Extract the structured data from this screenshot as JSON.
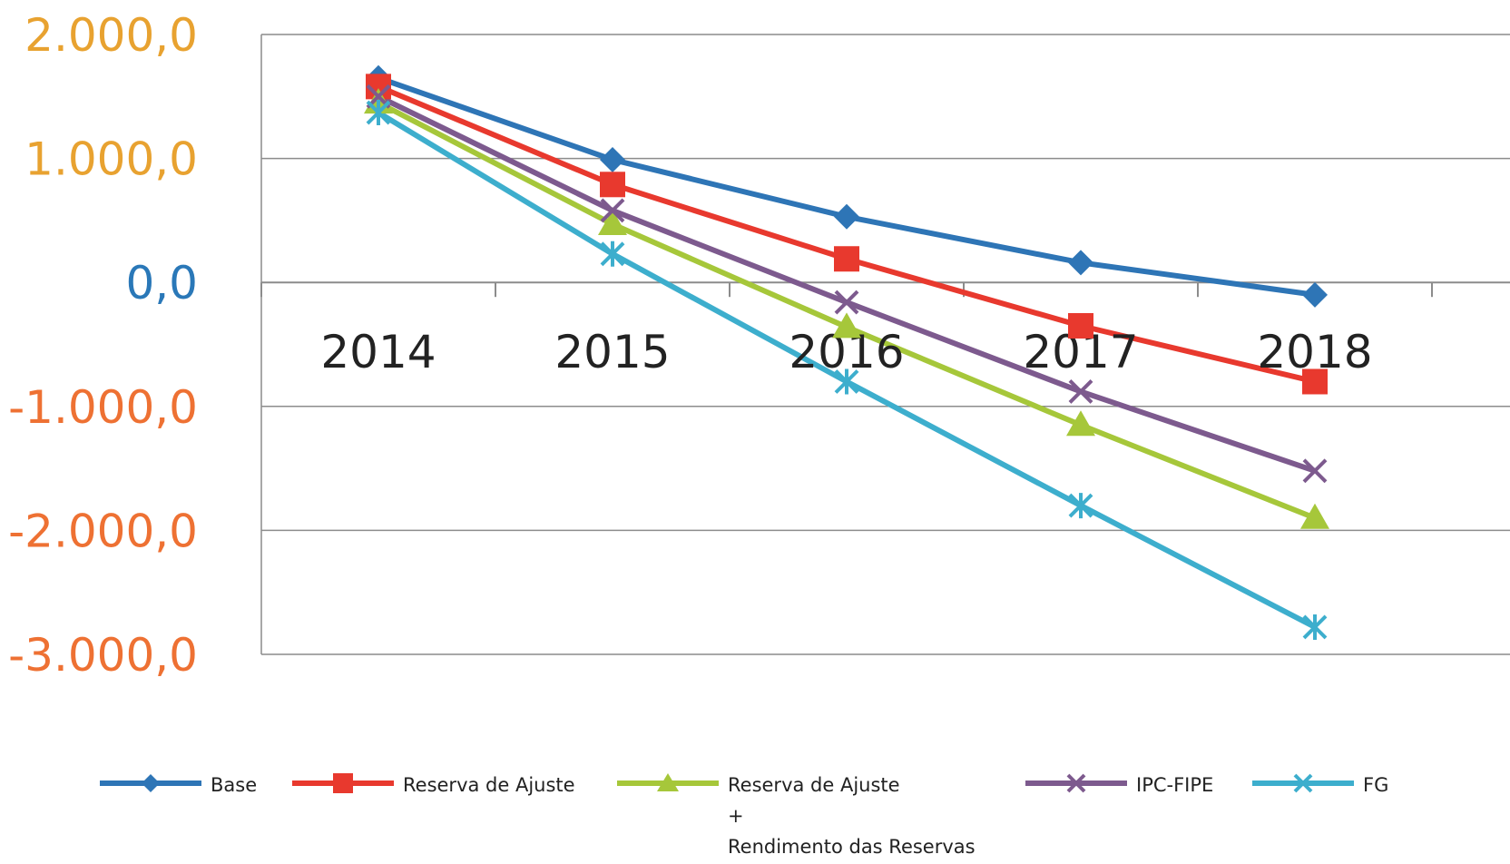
{
  "chart_data": {
    "type": "line",
    "title": "",
    "xlabel": "",
    "ylabel": "",
    "categories": [
      "2014",
      "2015",
      "2016",
      "2017",
      "2018"
    ],
    "ylim": [
      -3000,
      2000
    ],
    "yticks": [
      {
        "value": 2000,
        "label": "2.000,0",
        "color": "#e8a230"
      },
      {
        "value": 1000,
        "label": "1.000,0",
        "color": "#e8a230"
      },
      {
        "value": 0,
        "label": "0,0",
        "color": "#2a78b8"
      },
      {
        "value": -1000,
        "label": "-1.000,0",
        "color": "#ee7133"
      },
      {
        "value": -2000,
        "label": "-2.000,0",
        "color": "#ee7133"
      },
      {
        "value": -3000,
        "label": "-3.000,0",
        "color": "#ee7133"
      }
    ],
    "grid": true,
    "legend_position": "bottom",
    "series": [
      {
        "name": "Base",
        "color": "#2e75b6",
        "marker": "diamond",
        "values": [
          1650,
          990,
          530,
          160,
          -100
        ]
      },
      {
        "name": "Reserva de Ajuste",
        "color": "#e8392e",
        "marker": "square",
        "values": [
          1580,
          790,
          190,
          -350,
          -800
        ]
      },
      {
        "name": "Reserva de Ajuste\n+\nRendimento das Reservas",
        "color": "#a6c73a",
        "marker": "triangle",
        "values": [
          1450,
          470,
          -360,
          -1150,
          -1900
        ]
      },
      {
        "name": "IPC-FIPE",
        "color": "#7d5a8e",
        "marker": "x",
        "values": [
          1500,
          580,
          -160,
          -880,
          -1520
        ]
      },
      {
        "name": "FG",
        "color": "#3daecd",
        "marker": "star",
        "values": [
          1370,
          230,
          -800,
          -1800,
          -2780
        ]
      }
    ]
  }
}
